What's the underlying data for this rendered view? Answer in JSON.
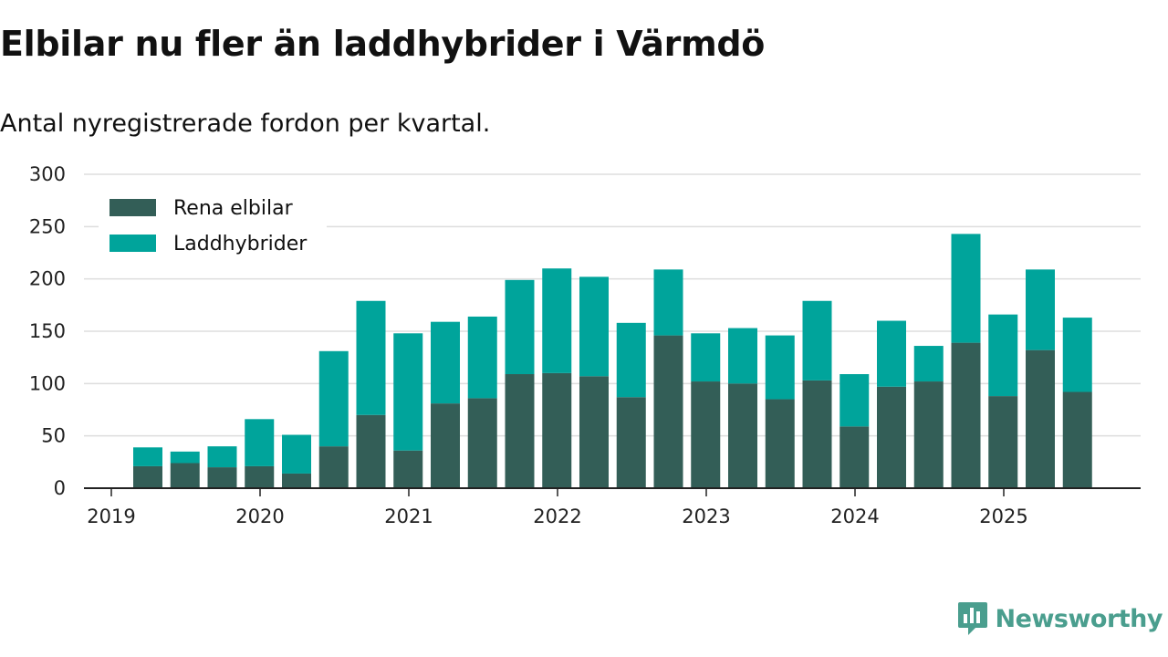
{
  "header": {
    "title": "Elbilar nu fler än laddhybrider i Värmdö",
    "subtitle": "Antal nyregistrerade fordon per kvartal."
  },
  "brand": {
    "name": "Newsworthy",
    "icon": "newsworthy-logo-icon",
    "color": "#4a9e8e"
  },
  "chart_data": {
    "type": "bar",
    "stacked": true,
    "title": "Elbilar nu fler än laddhybrider i Värmdö",
    "subtitle": "Antal nyregistrerade fordon per kvartal.",
    "xlabel": "",
    "ylabel": "",
    "ylim": [
      0,
      300
    ],
    "yticks": [
      0,
      50,
      100,
      150,
      200,
      250,
      300
    ],
    "year_ticks": [
      "2019",
      "2020",
      "2021",
      "2022",
      "2023",
      "2024",
      "2025"
    ],
    "grid": true,
    "legend_position": "top-left",
    "categories": [
      "2019 Q2",
      "2019 Q3",
      "2019 Q4",
      "2020 Q1",
      "2020 Q2",
      "2020 Q3",
      "2020 Q4",
      "2021 Q1",
      "2021 Q2",
      "2021 Q3",
      "2021 Q4",
      "2022 Q1",
      "2022 Q2",
      "2022 Q3",
      "2022 Q4",
      "2023 Q1",
      "2023 Q2",
      "2023 Q3",
      "2023 Q4",
      "2024 Q1",
      "2024 Q2",
      "2024 Q3",
      "2024 Q4",
      "2025 Q1",
      "2025 Q2",
      "2025 Q3"
    ],
    "series": [
      {
        "name": "Rena elbilar",
        "color": "#335e57",
        "values": [
          21,
          24,
          20,
          21,
          14,
          40,
          70,
          36,
          81,
          86,
          109,
          110,
          107,
          87,
          146,
          102,
          100,
          85,
          103,
          59,
          97,
          102,
          139,
          88,
          132,
          92
        ]
      },
      {
        "name": "Laddhybrider",
        "color": "#00a49b",
        "values": [
          18,
          11,
          20,
          45,
          37,
          91,
          109,
          112,
          78,
          78,
          90,
          100,
          95,
          71,
          63,
          46,
          53,
          61,
          76,
          50,
          63,
          34,
          104,
          78,
          77,
          71
        ]
      }
    ]
  }
}
